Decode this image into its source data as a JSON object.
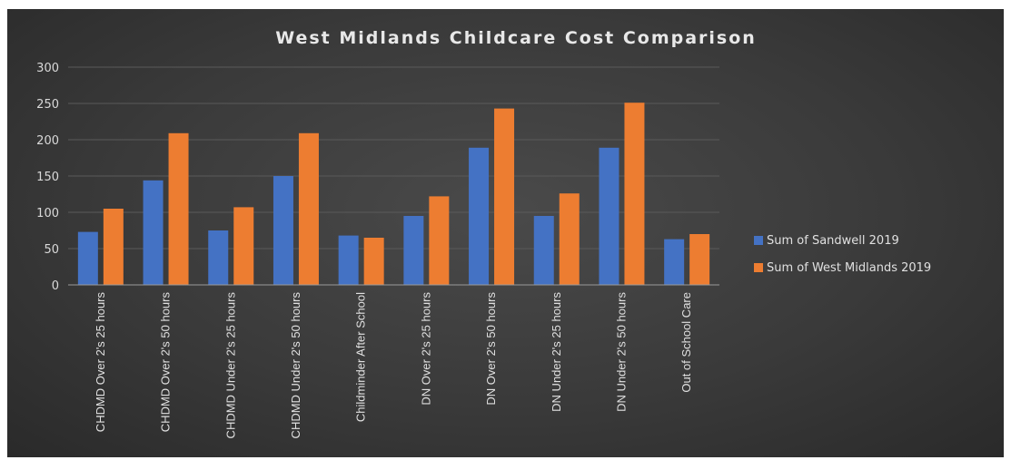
{
  "chart_data": {
    "type": "bar",
    "title": "West Midlands Childcare Cost Comparison",
    "categories": [
      "CHDMD Over 2's 25 hours",
      "CHDMD Over 2's 50 hours",
      "CHDMD Under 2's 25 hours",
      "CHDMD Under 2's 50 hours",
      "Childminder After School",
      "DN Over 2's 25 hours",
      "DN Over 2's 50 hours",
      "DN Under 2's 25 hours",
      "DN Under 2's 50 hours",
      "Out of School Care"
    ],
    "series": [
      {
        "name": "Sum of Sandwell 2019",
        "color": "#4472C4",
        "values": [
          73,
          144,
          75,
          150,
          68,
          95,
          189,
          95,
          189,
          63
        ]
      },
      {
        "name": "Sum of West Midlands 2019",
        "color": "#ED7D31",
        "values": [
          105,
          209,
          107,
          209,
          65,
          122,
          243,
          126,
          251,
          70
        ]
      }
    ],
    "ylim": [
      0,
      300
    ],
    "yticks": [
      0,
      50,
      100,
      150,
      200,
      250,
      300
    ],
    "grid": true,
    "legend_position": "right"
  }
}
